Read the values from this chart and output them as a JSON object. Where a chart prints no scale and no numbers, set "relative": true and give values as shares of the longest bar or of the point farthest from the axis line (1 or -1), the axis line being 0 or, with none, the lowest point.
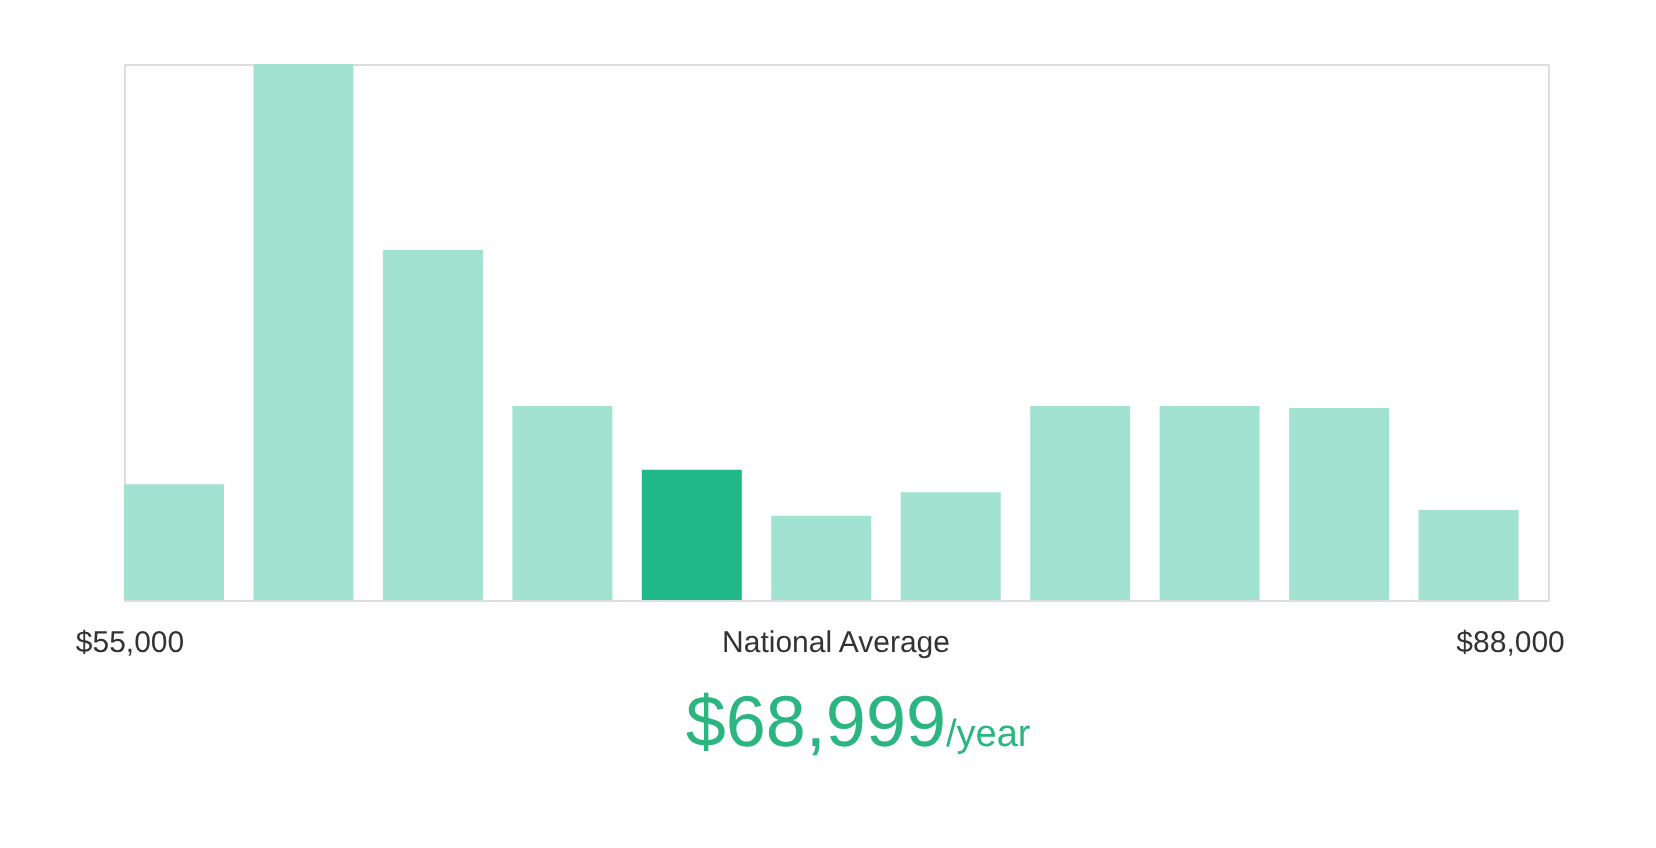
{
  "chart_data": {
    "type": "bar",
    "relative": true,
    "categories": [
      null,
      null,
      null,
      null,
      null,
      null,
      null,
      null,
      null,
      null,
      null
    ],
    "values": [
      0.216,
      1,
      0.653,
      0.362,
      0.243,
      0.157,
      0.201,
      0.362,
      0.362,
      0.358,
      0.168
    ],
    "colors": [
      "#a2e2d1",
      "#a2e2d1",
      "#a2e2d1",
      "#a2e2d1",
      "#1fb886",
      "#a2e2d1",
      "#a2e2d1",
      "#a2e2d1",
      "#a2e2d1",
      "#a2e2d1",
      "#a2e2d1"
    ],
    "annotations": [
      "$55,000",
      "$88,000",
      "National Average",
      "$68,999",
      "/year"
    ]
  }
}
